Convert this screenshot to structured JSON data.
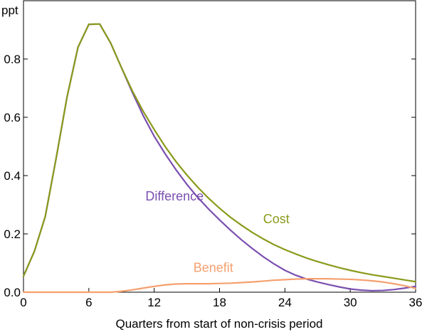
{
  "chart_data": {
    "type": "line",
    "title": "",
    "xlabel": "Quarters from start of non-crisis period",
    "ylabel": "ppt",
    "xlim": [
      0,
      36
    ],
    "ylim": [
      0,
      1.0
    ],
    "xticks": [
      0,
      6,
      12,
      18,
      24,
      30,
      36
    ],
    "yticks": [
      0.0,
      0.2,
      0.4,
      0.6,
      0.8
    ],
    "ytick_labels": [
      "0.0",
      "0.2",
      "0.4",
      "0.6",
      "0.8"
    ],
    "grid": false,
    "legend": "none",
    "series": [
      {
        "name": "Difference",
        "color": "#7b4fb0",
        "x": [
          0,
          1,
          2,
          3,
          4,
          5,
          6,
          7,
          8,
          9,
          10,
          11,
          12,
          13,
          14,
          15,
          16,
          17,
          18,
          19,
          20,
          21,
          22,
          23,
          24,
          25,
          26,
          27,
          28,
          29,
          30,
          31,
          32,
          33,
          34,
          35,
          36
        ],
        "values": [
          0.055,
          0.14,
          0.26,
          0.46,
          0.67,
          0.84,
          0.919,
          0.92,
          0.855,
          0.77,
          0.685,
          0.605,
          0.535,
          0.475,
          0.42,
          0.37,
          0.325,
          0.285,
          0.248,
          0.213,
          0.18,
          0.15,
          0.122,
          0.097,
          0.075,
          0.058,
          0.045,
          0.035,
          0.026,
          0.018,
          0.011,
          0.007,
          0.005,
          0.006,
          0.009,
          0.014,
          0.02
        ]
      },
      {
        "name": "Cost",
        "color": "#8a9a1b",
        "x": [
          0,
          1,
          2,
          3,
          4,
          5,
          6,
          7,
          8,
          9,
          10,
          11,
          12,
          13,
          14,
          15,
          16,
          17,
          18,
          19,
          20,
          21,
          22,
          23,
          24,
          25,
          26,
          27,
          28,
          29,
          30,
          31,
          32,
          33,
          34,
          35,
          36
        ],
        "values": [
          0.055,
          0.14,
          0.26,
          0.46,
          0.67,
          0.84,
          0.919,
          0.92,
          0.855,
          0.77,
          0.69,
          0.62,
          0.558,
          0.5,
          0.448,
          0.402,
          0.36,
          0.322,
          0.288,
          0.257,
          0.23,
          0.205,
          0.183,
          0.163,
          0.146,
          0.131,
          0.117,
          0.105,
          0.094,
          0.084,
          0.075,
          0.067,
          0.06,
          0.054,
          0.048,
          0.042,
          0.036
        ]
      },
      {
        "name": "Benefit",
        "color": "#f5a06e",
        "x": [
          0,
          3,
          8,
          9,
          10,
          11,
          12,
          13,
          14,
          15,
          16,
          17,
          18,
          19,
          20,
          21,
          22,
          23,
          24,
          25,
          26,
          27,
          28,
          29,
          30,
          31,
          32,
          33,
          34,
          35,
          36
        ],
        "values": [
          0.0,
          0.0,
          0.0,
          0.003,
          0.008,
          0.014,
          0.02,
          0.025,
          0.028,
          0.029,
          0.029,
          0.029,
          0.03,
          0.031,
          0.033,
          0.035,
          0.038,
          0.041,
          0.043,
          0.045,
          0.046,
          0.046,
          0.046,
          0.045,
          0.044,
          0.042,
          0.039,
          0.035,
          0.029,
          0.022,
          0.013
        ]
      }
    ],
    "annotations": [
      {
        "series": "Difference",
        "text": "Difference",
        "x": 11.2,
        "y": 0.315
      },
      {
        "series": "Cost",
        "text": "Cost",
        "x": 22.0,
        "y": 0.237
      },
      {
        "series": "Benefit",
        "text": "Benefit",
        "x": 15.6,
        "y": 0.07
      }
    ]
  }
}
